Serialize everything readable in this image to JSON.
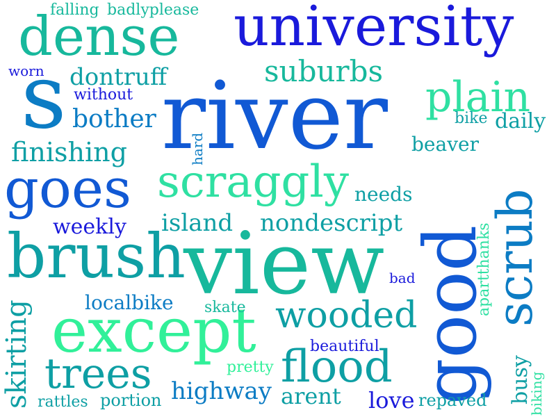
{
  "colors": {
    "dark_blue": "#1a1adb",
    "blue": "#1159d4",
    "mid_blue": "#0c7cc4",
    "teal": "#0e9fa4",
    "sea_green": "#17b89c",
    "mint": "#2fe0a2",
    "bright_green": "#31f099",
    "background": "#ffffff"
  },
  "words": [
    {
      "text": "river"
    },
    {
      "text": "university"
    },
    {
      "text": "view"
    },
    {
      "text": "except"
    },
    {
      "text": "good"
    },
    {
      "text": "brush"
    },
    {
      "text": "s"
    },
    {
      "text": "dense"
    },
    {
      "text": "goes"
    },
    {
      "text": "scrub"
    },
    {
      "text": "scraggly"
    },
    {
      "text": "flood"
    },
    {
      "text": "trees"
    },
    {
      "text": "plain"
    },
    {
      "text": "wooded"
    },
    {
      "text": "suburbs"
    },
    {
      "text": "finishing"
    },
    {
      "text": "skirting"
    },
    {
      "text": "nondescript"
    },
    {
      "text": "island"
    },
    {
      "text": "bother"
    },
    {
      "text": "dontruff"
    },
    {
      "text": "highway"
    },
    {
      "text": "arent"
    },
    {
      "text": "love"
    },
    {
      "text": "localbike"
    },
    {
      "text": "weekly"
    },
    {
      "text": "beaver"
    },
    {
      "text": "daily"
    },
    {
      "text": "needs"
    },
    {
      "text": "busy"
    },
    {
      "text": "apartthanks"
    },
    {
      "text": "repaved"
    },
    {
      "text": "portion"
    },
    {
      "text": "rattles"
    },
    {
      "text": "beautiful"
    },
    {
      "text": "pretty"
    },
    {
      "text": "skate"
    },
    {
      "text": "falling"
    },
    {
      "text": "badlyplease"
    },
    {
      "text": "without"
    },
    {
      "text": "worn"
    },
    {
      "text": "bike"
    },
    {
      "text": "hard"
    },
    {
      "text": "bad"
    },
    {
      "text": "biking"
    }
  ]
}
